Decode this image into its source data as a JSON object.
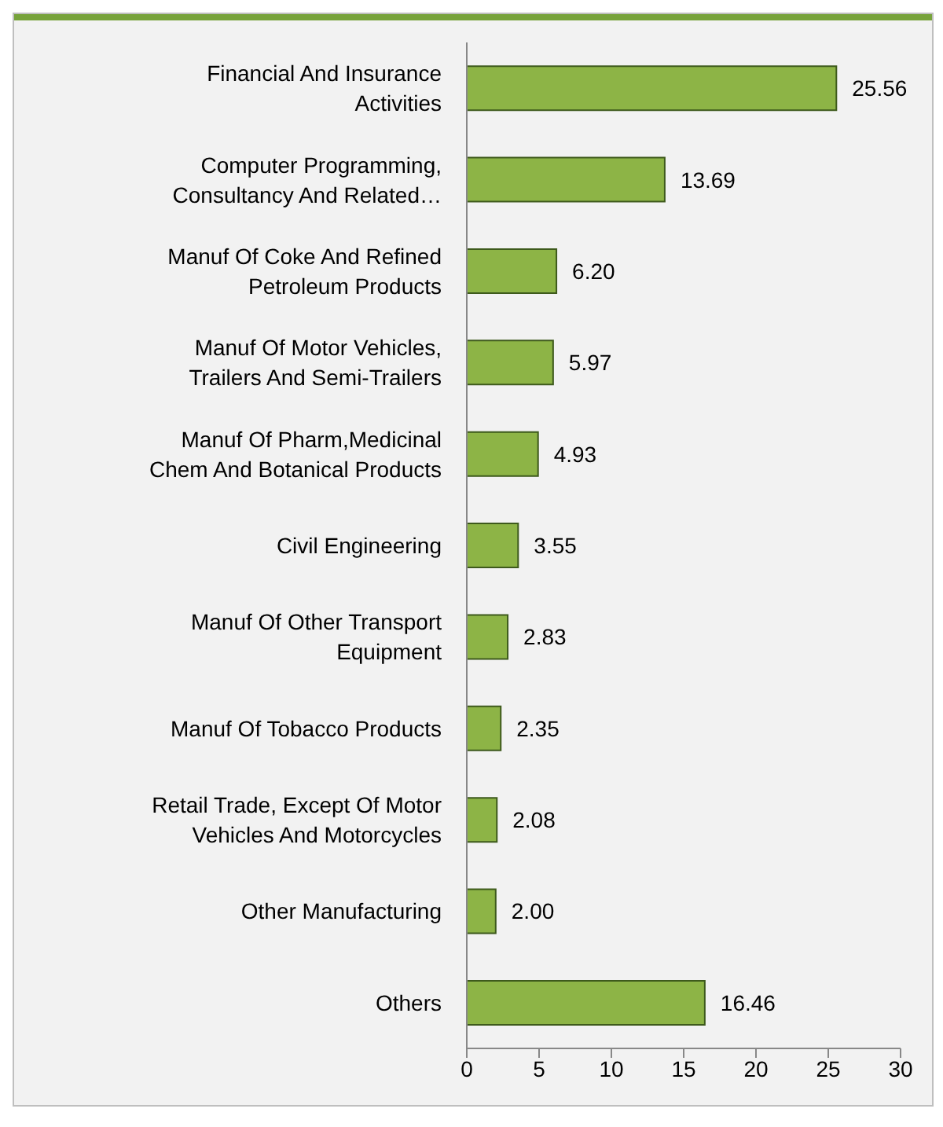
{
  "chart_data": {
    "type": "bar",
    "orientation": "horizontal",
    "categories": [
      "Financial And Insurance Activities",
      "Computer Programming, Consultancy And Related…",
      "Manuf Of Coke And Refined Petroleum Products",
      "Manuf Of Motor Vehicles, Trailers And Semi-Trailers",
      "Manuf Of Pharm,Medicinal Chem And Botanical Products",
      "Civil Engineering",
      "Manuf Of Other Transport Equipment",
      "Manuf Of Tobacco Products",
      "Retail Trade, Except Of Motor Vehicles And Motorcycles",
      "Other Manufacturing",
      "Others"
    ],
    "values": [
      25.56,
      13.69,
      6.2,
      5.97,
      4.93,
      3.55,
      2.83,
      2.35,
      2.08,
      2.0,
      16.46
    ],
    "value_labels": [
      "25.56",
      "13.69",
      "6.20",
      "5.97",
      "4.93",
      "3.55",
      "2.83",
      "2.35",
      "2.08",
      "2.00",
      "16.46"
    ],
    "color": "#8db446",
    "xlim": [
      0,
      30
    ],
    "xticks": [
      0,
      5,
      10,
      15,
      20,
      25,
      30
    ]
  }
}
